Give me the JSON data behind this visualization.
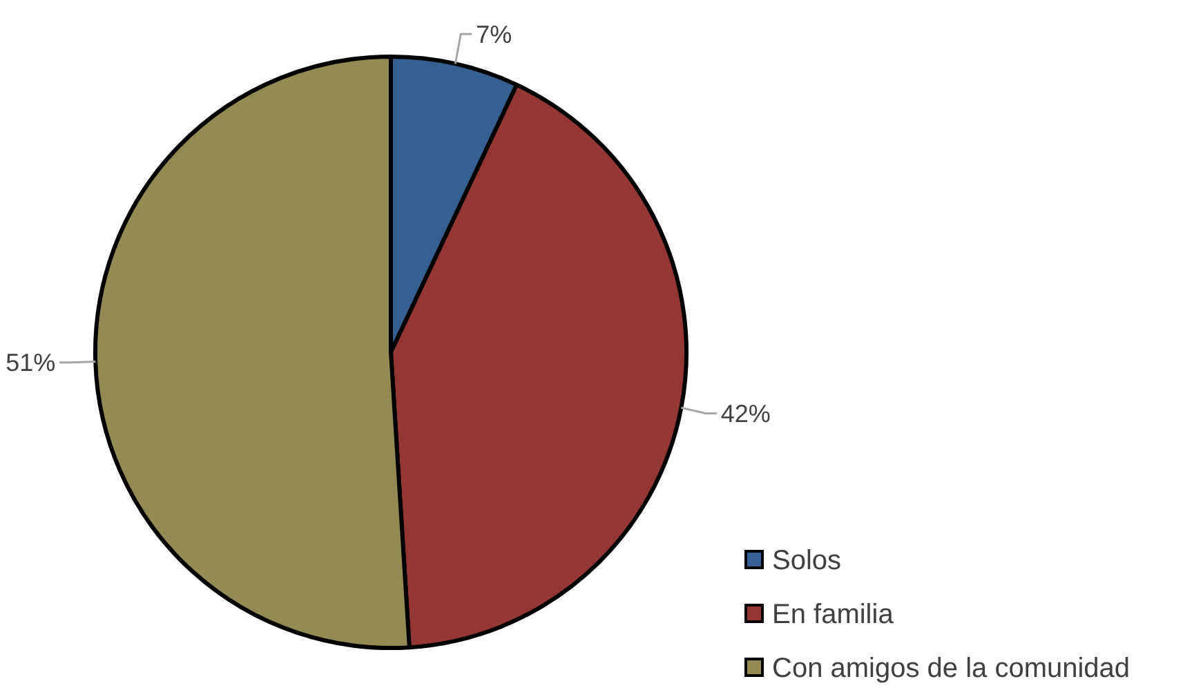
{
  "chart_data": {
    "type": "pie",
    "categories": [
      "Solos",
      "En familia",
      "Con amigos de la comunidad"
    ],
    "values": [
      7,
      42,
      51
    ],
    "colors": [
      "#376092",
      "#953735",
      "#948a54"
    ],
    "value_labels": [
      "7%",
      "42%",
      "51%"
    ],
    "legend": "bottom right"
  }
}
